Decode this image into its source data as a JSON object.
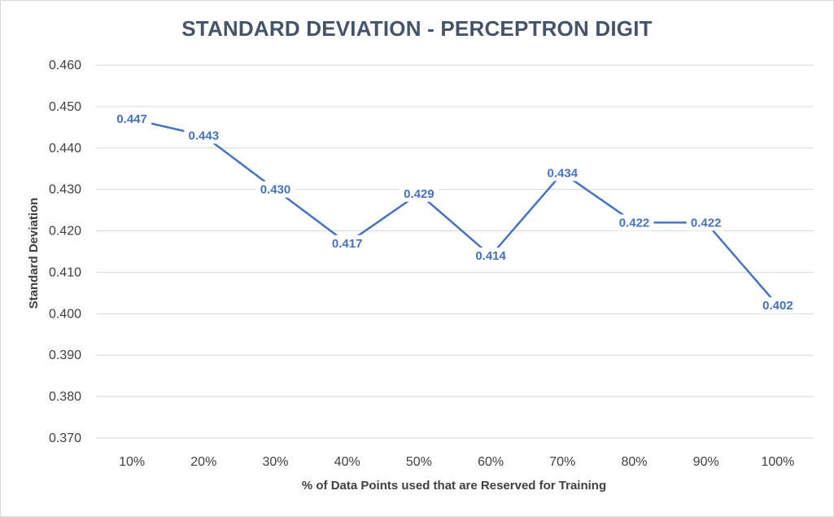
{
  "chart_data": {
    "type": "line",
    "title": "STANDARD DEVIATION - PERCEPTRON DIGIT",
    "xlabel": "% of Data Points used that are Reserved for Training",
    "ylabel": "Standard Deviation",
    "categories": [
      "10%",
      "20%",
      "30%",
      "40%",
      "50%",
      "60%",
      "70%",
      "80%",
      "90%",
      "100%"
    ],
    "series": [
      {
        "values": [
          0.447,
          0.443,
          0.43,
          0.417,
          0.429,
          0.414,
          0.434,
          0.422,
          0.422,
          0.402
        ],
        "data_labels": [
          "0.447",
          "0.443",
          "0.430",
          "0.417",
          "0.429",
          "0.414",
          "0.434",
          "0.422",
          "0.422",
          "0.402"
        ],
        "color": "#4472c4"
      }
    ],
    "ylim": [
      0.37,
      0.46
    ],
    "y_ticks": [
      "0.460",
      "0.450",
      "0.440",
      "0.430",
      "0.420",
      "0.410",
      "0.400",
      "0.390",
      "0.380",
      "0.370"
    ],
    "grid": true,
    "legend": "none",
    "colors": {
      "title": "#44546a",
      "grid": "#d9d9d9",
      "text": "#404040"
    }
  }
}
